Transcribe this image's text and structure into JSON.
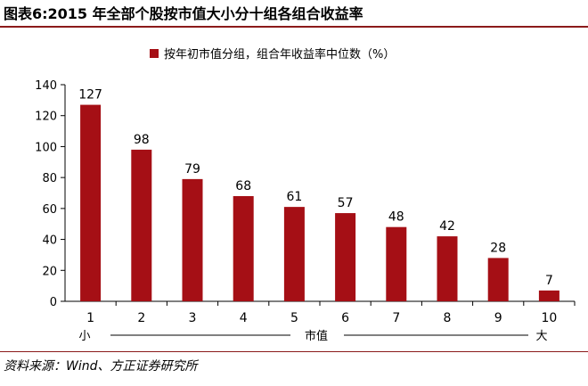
{
  "title": "图表6:2015 年全部个股按市值大小分十组各组合收益率",
  "source": "资料来源：Wind、方正证券研究所",
  "chart_data": {
    "type": "bar",
    "categories": [
      "1",
      "2",
      "3",
      "4",
      "5",
      "6",
      "7",
      "8",
      "9",
      "10"
    ],
    "series": [
      {
        "name": "按年初市值分组，组合年收益率中位数（%）",
        "values": [
          127,
          98,
          79,
          68,
          61,
          57,
          48,
          42,
          28,
          7
        ]
      }
    ],
    "data_labels": [
      "127",
      "98",
      "79",
      "68",
      "61",
      "57",
      "48",
      "42",
      "28",
      "7"
    ],
    "yticks": [
      "0",
      "20",
      "40",
      "60",
      "80",
      "100",
      "120",
      "140"
    ],
    "ylim": [
      0,
      140
    ],
    "grid": false,
    "legend_position": "top-center",
    "xaxis_annotation": {
      "left": "小",
      "center": "市值",
      "right": "大"
    },
    "bar_color": "#a50f15"
  }
}
